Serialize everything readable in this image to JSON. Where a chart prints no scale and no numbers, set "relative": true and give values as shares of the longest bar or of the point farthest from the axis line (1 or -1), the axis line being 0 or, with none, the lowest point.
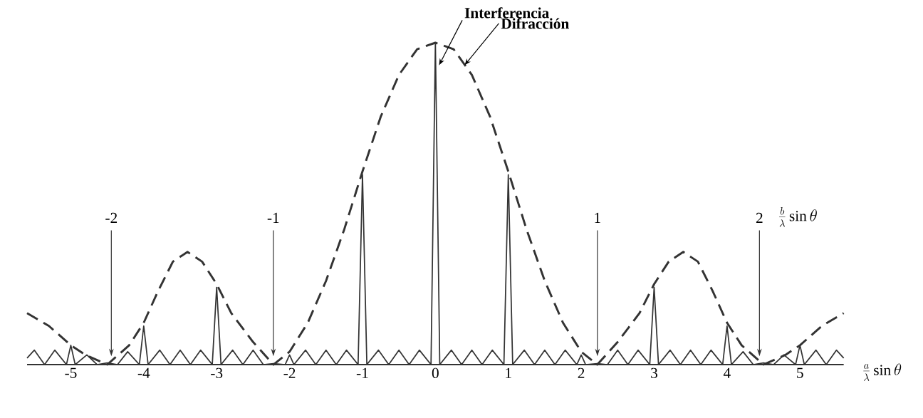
{
  "chart_data": {
    "type": "line",
    "relative": true,
    "xlim": [
      -5.6,
      5.6
    ],
    "xticks": [
      -5,
      -4,
      -3,
      -2,
      -1,
      0,
      1,
      2,
      3,
      4,
      5
    ],
    "x2lim": [
      -2.52,
      2.52
    ],
    "x2ticks": [
      -2,
      -1,
      1,
      2
    ],
    "xlabel": "\\frac{a}{\\lambda}\\sin\\theta",
    "x2label": "\\frac{b}{\\lambda}\\sin\\theta",
    "tick_labels": "x",
    "annotations": [
      {
        "text": "Interferencia",
        "x": 0.05,
        "y": 0.93
      },
      {
        "text": "Difracción",
        "x": 0.4,
        "y": 0.93
      }
    ],
    "series": [
      {
        "color": "#333333",
        "line_style": "dashed",
        "x": [
          -5.6,
          -5.3,
          -5,
          -4.8,
          -4.5,
          -4.2,
          -4,
          -3.8,
          -3.6,
          -3.4,
          -3.2,
          -3,
          -2.8,
          -2.5,
          -2.22,
          -2,
          -1.75,
          -1.5,
          -1.25,
          -1,
          -0.75,
          -0.5,
          -0.25,
          0,
          0.25,
          0.5,
          0.75,
          1,
          1.25,
          1.5,
          1.75,
          2,
          2.22,
          2.5,
          2.8,
          3,
          3.2,
          3.4,
          3.6,
          3.8,
          4,
          4.2,
          4.5,
          4.8,
          5,
          5.3,
          5.6
        ],
        "values": [
          0.16,
          0.12,
          0.06,
          0.03,
          0,
          0.06,
          0.13,
          0.23,
          0.32,
          0.35,
          0.32,
          0.25,
          0.16,
          0.07,
          0,
          0.04,
          0.13,
          0.26,
          0.42,
          0.6,
          0.77,
          0.9,
          0.98,
          1,
          0.98,
          0.9,
          0.77,
          0.6,
          0.42,
          0.26,
          0.13,
          0.04,
          0,
          0.07,
          0.16,
          0.25,
          0.32,
          0.35,
          0.32,
          0.23,
          0.13,
          0.06,
          0,
          0.03,
          0.06,
          0.12,
          0.16
        ]
      },
      {
        "color": "#333333",
        "line_style": "solid",
        "x": [
          -5.6,
          -5.5,
          -5.36,
          -5.22,
          -5.06,
          -5,
          -4.94,
          -4.78,
          -4.64,
          -4.5,
          -4.36,
          -4.22,
          -4.06,
          -4,
          -3.94,
          -3.78,
          -3.64,
          -3.5,
          -3.36,
          -3.22,
          -3.06,
          -3,
          -2.94,
          -2.78,
          -2.64,
          -2.5,
          -2.36,
          -2.22,
          -2.06,
          -2,
          -1.94,
          -1.78,
          -1.64,
          -1.5,
          -1.36,
          -1.22,
          -1.06,
          -1,
          -0.94,
          -0.78,
          -0.64,
          -0.5,
          -0.36,
          -0.22,
          -0.06,
          0,
          0.06,
          0.22,
          0.36,
          0.5,
          0.64,
          0.78,
          0.94,
          1,
          1.06,
          1.22,
          1.36,
          1.5,
          1.64,
          1.78,
          1.94,
          2,
          2.06,
          2.22,
          2.36,
          2.5,
          2.64,
          2.78,
          2.94,
          3,
          3.06,
          3.22,
          3.36,
          3.5,
          3.64,
          3.78,
          3.94,
          4,
          4.06,
          4.22,
          4.36,
          4.5,
          4.64,
          4.78,
          4.94,
          5,
          5.06,
          5.22,
          5.36,
          5.5,
          5.6
        ],
        "values": [
          0.02,
          0.045,
          0,
          0.045,
          0,
          0.06,
          0,
          0.03,
          0,
          0.005,
          0,
          0.04,
          0,
          0.12,
          0,
          0.045,
          0,
          0.045,
          0,
          0.045,
          0,
          0.24,
          0,
          0.045,
          0,
          0.045,
          0,
          0.003,
          0,
          0.03,
          0,
          0.045,
          0,
          0.045,
          0,
          0.045,
          0,
          0.59,
          0,
          0.045,
          0,
          0.045,
          0,
          0.045,
          0,
          1,
          0,
          0.045,
          0,
          0.045,
          0,
          0.045,
          0,
          0.59,
          0,
          0.045,
          0,
          0.045,
          0,
          0.045,
          0,
          0.03,
          0,
          0.003,
          0,
          0.045,
          0,
          0.045,
          0,
          0.24,
          0,
          0.045,
          0,
          0.045,
          0,
          0.045,
          0,
          0.12,
          0,
          0.04,
          0,
          0.005,
          0,
          0.03,
          0,
          0.06,
          0,
          0.045,
          0,
          0.045,
          0.02
        ]
      }
    ]
  }
}
